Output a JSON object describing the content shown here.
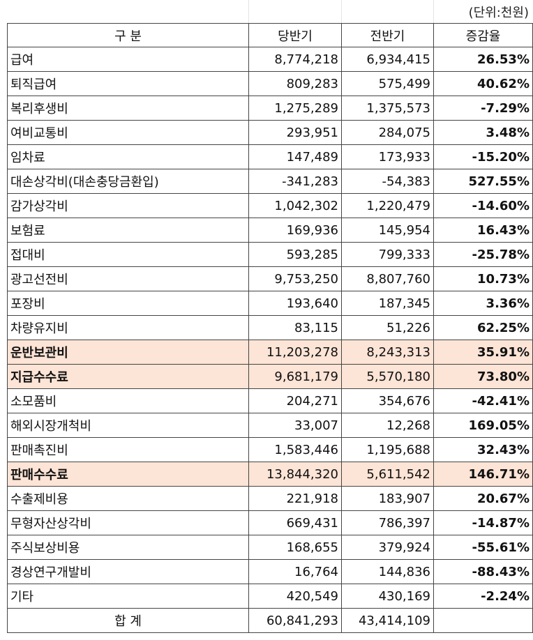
{
  "unit_note": "(단위:천원)",
  "table": {
    "header": [
      "구 분",
      "당반기",
      "전반기",
      "증감율"
    ],
    "rows": [
      [
        "급여",
        "8,774,218",
        "6,934,415",
        "26.53%"
      ],
      [
        "퇴직급여",
        "809,283",
        "575,499",
        "40.62%"
      ],
      [
        "복리후생비",
        "1,275,289",
        "1,375,573",
        "-7.29%"
      ],
      [
        "여비교통비",
        "293,951",
        "284,075",
        "3.48%"
      ],
      [
        "임차료",
        "147,489",
        "173,933",
        "-15.20%"
      ],
      [
        "대손상각비(대손충당금환입)",
        "-341,283",
        "-54,383",
        "527.55%"
      ],
      [
        "감가상각비",
        "1,042,302",
        "1,220,479",
        "-14.60%"
      ],
      [
        "보험료",
        "169,936",
        "145,954",
        "16.43%"
      ],
      [
        "접대비",
        "593,285",
        "799,333",
        "-25.78%"
      ],
      [
        "광고선전비",
        "9,753,250",
        "8,807,760",
        "10.73%"
      ],
      [
        "포장비",
        "193,640",
        "187,345",
        "3.36%"
      ],
      [
        "차량유지비",
        "83,115",
        "51,226",
        "62.25%"
      ],
      [
        "운반보관비",
        "11,203,278",
        "8,243,313",
        "35.91%"
      ],
      [
        "지급수수료",
        "9,681,179",
        "5,570,180",
        "73.80%"
      ],
      [
        "소모품비",
        "204,271",
        "354,676",
        "-42.41%"
      ],
      [
        "해외시장개척비",
        "33,007",
        "12,268",
        "169.05%"
      ],
      [
        "판매촉진비",
        "1,583,446",
        "1,195,688",
        "32.43%"
      ],
      [
        "판매수수료",
        "13,844,320",
        "5,611,542",
        "146.71%"
      ],
      [
        "수출제비용",
        "221,918",
        "183,907",
        "20.67%"
      ],
      [
        "무형자산상각비",
        "669,431",
        "786,397",
        "-14.87%"
      ],
      [
        "주식보상비용",
        "168,655",
        "379,924",
        "-55.61%"
      ],
      [
        "경상연구개발비",
        "16,764",
        "144,836",
        "-88.43%"
      ],
      [
        "기타",
        "420,549",
        "430,169",
        "-2.24%"
      ]
    ],
    "total": [
      "합 계",
      "60,841,293",
      "43,414,109"
    ]
  },
  "highlighted_rows": [
    12,
    13,
    17
  ],
  "highlight_color": "#fce4d6"
}
